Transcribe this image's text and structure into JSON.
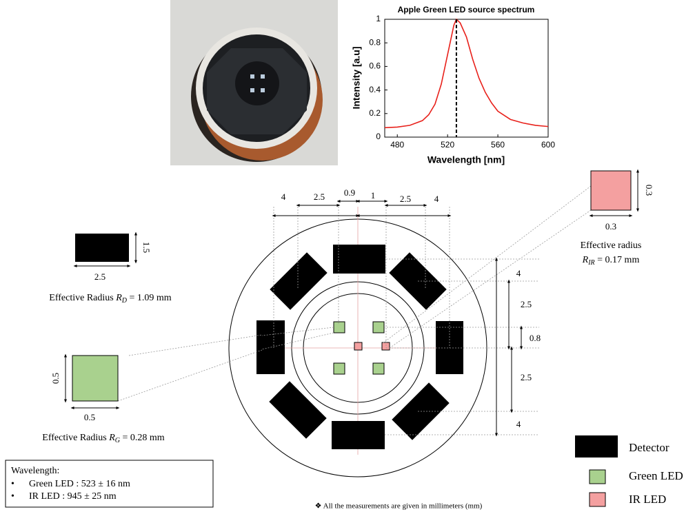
{
  "chart_data": {
    "type": "line",
    "title": "Apple Green LED source spectrum",
    "xlabel": "Wavelength [nm]",
    "ylabel": "Intensity [a.u]",
    "x": [
      470,
      480,
      490,
      500,
      505,
      510,
      515,
      520,
      525,
      527,
      530,
      535,
      540,
      545,
      550,
      555,
      560,
      570,
      580,
      590,
      600
    ],
    "series": [
      {
        "color": "#e8201a",
        "values": [
          0.08,
          0.085,
          0.1,
          0.14,
          0.19,
          0.28,
          0.45,
          0.7,
          0.95,
          1,
          0.97,
          0.85,
          0.66,
          0.5,
          0.38,
          0.29,
          0.22,
          0.15,
          0.12,
          0.1,
          0.09
        ]
      }
    ],
    "peak_wavelength": 527,
    "xlim": [
      470,
      600
    ],
    "ylim": [
      0,
      1
    ],
    "xticks": [
      480,
      520,
      560,
      600
    ],
    "yticks": [
      0,
      0.2,
      0.4,
      0.6,
      0.8,
      1
    ]
  },
  "diagram": {
    "detector_example": {
      "width": "2.5",
      "height": "1.5",
      "label": "Effective Radius",
      "symbol": "R",
      "sub": "D",
      "expr": "= 1.09 mm"
    },
    "green_example": {
      "width": "0.5",
      "height": "0.5",
      "label": "Effective Radius",
      "symbol": "R",
      "sub": "G",
      "expr": "= 0.28 mm"
    },
    "ir_example": {
      "width": "0.3",
      "height": "0.3",
      "label": "Effective radius",
      "symbol": "R",
      "sub": "IR",
      "expr": "= 0.17 mm"
    },
    "top_dimensions": [
      "4",
      "2.5",
      "0.9",
      "1",
      "2.5",
      "4"
    ],
    "right_dimensions": [
      "4",
      "2.5",
      "0.8",
      "2.5",
      "4"
    ],
    "legend": [
      "Detector",
      "Green LED",
      "IR LED"
    ],
    "wavelength_box": {
      "title": "Wavelength:",
      "items": [
        "Green LED : 523 ± 16 nm",
        "IR LED : 945 ± 25 nm"
      ]
    },
    "footnote": "❖ All the measurements are given in millimeters (mm)"
  }
}
